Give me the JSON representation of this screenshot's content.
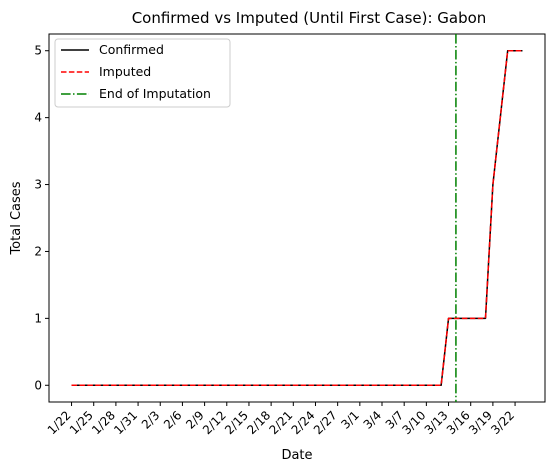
{
  "chart_data": {
    "type": "line",
    "title": "Confirmed vs Imputed (Until First Case): Gabon",
    "xlabel": "Date",
    "ylabel": "Total Cases",
    "ylim": [
      -0.25,
      5.25
    ],
    "yticks": [
      0,
      1,
      2,
      3,
      4,
      5
    ],
    "grid": false,
    "legend_position": "top-left",
    "x_tick_labels": [
      "1/22",
      "1/25",
      "1/28",
      "1/31",
      "2/3",
      "2/6",
      "2/9",
      "2/12",
      "2/15",
      "2/18",
      "2/21",
      "2/24",
      "2/27",
      "3/1",
      "3/4",
      "3/7",
      "3/10",
      "3/13",
      "3/16",
      "3/19",
      "3/22"
    ],
    "x": [
      "1/22",
      "1/23",
      "1/24",
      "1/25",
      "1/26",
      "1/27",
      "1/28",
      "1/29",
      "1/30",
      "1/31",
      "2/1",
      "2/2",
      "2/3",
      "2/4",
      "2/5",
      "2/6",
      "2/7",
      "2/8",
      "2/9",
      "2/10",
      "2/11",
      "2/12",
      "2/13",
      "2/14",
      "2/15",
      "2/16",
      "2/17",
      "2/18",
      "2/19",
      "2/20",
      "2/21",
      "2/22",
      "2/23",
      "2/24",
      "2/25",
      "2/26",
      "2/27",
      "2/28",
      "2/29",
      "3/1",
      "3/2",
      "3/3",
      "3/4",
      "3/5",
      "3/6",
      "3/7",
      "3/8",
      "3/9",
      "3/10",
      "3/11",
      "3/12",
      "3/13",
      "3/14",
      "3/15",
      "3/16",
      "3/17",
      "3/18",
      "3/19",
      "3/20",
      "3/21",
      "3/22",
      "3/23"
    ],
    "series": [
      {
        "name": "Confirmed",
        "color": "#000000",
        "style": "solid",
        "values": [
          0,
          0,
          0,
          0,
          0,
          0,
          0,
          0,
          0,
          0,
          0,
          0,
          0,
          0,
          0,
          0,
          0,
          0,
          0,
          0,
          0,
          0,
          0,
          0,
          0,
          0,
          0,
          0,
          0,
          0,
          0,
          0,
          0,
          0,
          0,
          0,
          0,
          0,
          0,
          0,
          0,
          0,
          0,
          0,
          0,
          0,
          0,
          0,
          0,
          0,
          0,
          1,
          1,
          1,
          1,
          1,
          1,
          3,
          4,
          5,
          5,
          5
        ]
      },
      {
        "name": "Imputed",
        "color": "#ff0000",
        "style": "dashed",
        "values": [
          0,
          0,
          0,
          0,
          0,
          0,
          0,
          0,
          0,
          0,
          0,
          0,
          0,
          0,
          0,
          0,
          0,
          0,
          0,
          0,
          0,
          0,
          0,
          0,
          0,
          0,
          0,
          0,
          0,
          0,
          0,
          0,
          0,
          0,
          0,
          0,
          0,
          0,
          0,
          0,
          0,
          0,
          0,
          0,
          0,
          0,
          0,
          0,
          0,
          0,
          0,
          1,
          1,
          1,
          1,
          1,
          1,
          3,
          4,
          5,
          5,
          5
        ]
      }
    ],
    "vline": {
      "name": "End of Imputation",
      "x": "3/14",
      "color": "#008000",
      "style": "dashdot"
    }
  }
}
